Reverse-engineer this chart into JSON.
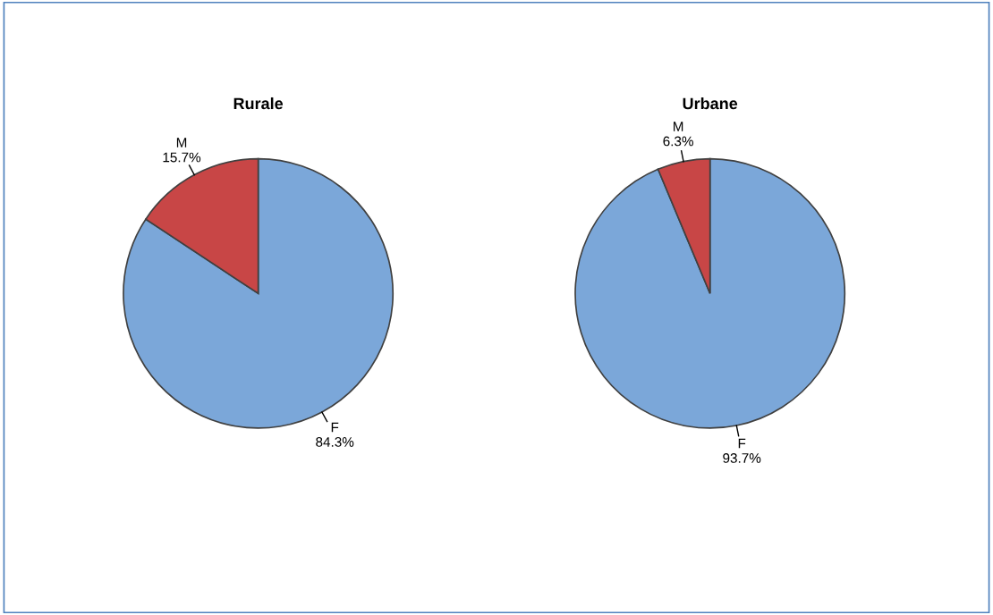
{
  "chart_data": [
    {
      "type": "pie",
      "title": "Rurale",
      "categories": [
        "F",
        "M"
      ],
      "values": [
        84.3,
        15.7
      ],
      "colors": [
        "#7ba7d9",
        "#c84646"
      ],
      "value_labels": [
        "84.3%",
        "15.7%"
      ],
      "legend": false
    },
    {
      "type": "pie",
      "title": "Urbane",
      "categories": [
        "F",
        "M"
      ],
      "values": [
        93.7,
        6.3
      ],
      "colors": [
        "#7ba7d9",
        "#c84646"
      ],
      "value_labels": [
        "93.7%",
        "6.3%"
      ],
      "legend": false
    }
  ]
}
